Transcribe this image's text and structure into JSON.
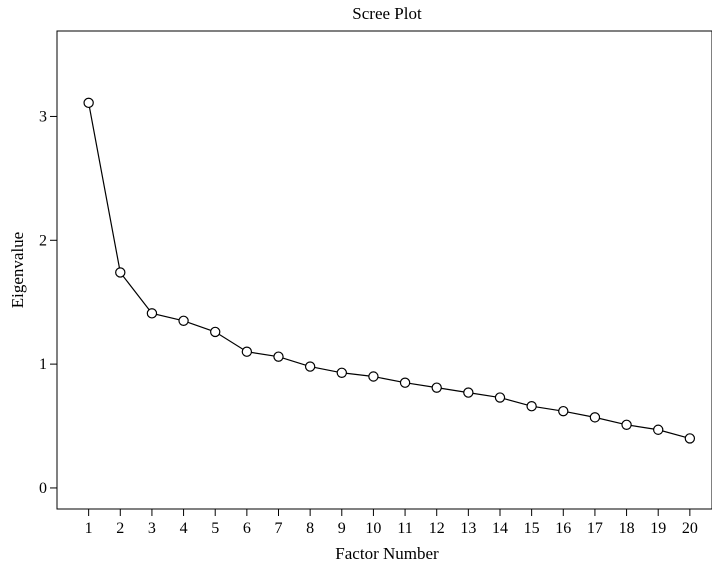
{
  "chart_data": {
    "type": "line",
    "title": "Scree Plot",
    "xlabel": "Factor Number",
    "ylabel": "Eigenvalue",
    "x": [
      1,
      2,
      3,
      4,
      5,
      6,
      7,
      8,
      9,
      10,
      11,
      12,
      13,
      14,
      15,
      16,
      17,
      18,
      19,
      20
    ],
    "x_ticks": [
      "1",
      "2",
      "3",
      "4",
      "5",
      "6",
      "7",
      "8",
      "9",
      "10",
      "11",
      "12",
      "13",
      "14",
      "15",
      "16",
      "17",
      "18",
      "19",
      "20"
    ],
    "y_ticks": [
      "0",
      "1",
      "2",
      "3"
    ],
    "series": [
      {
        "values": [
          3.11,
          1.74,
          1.41,
          1.35,
          1.26,
          1.1,
          1.06,
          0.98,
          0.93,
          0.9,
          0.85,
          0.81,
          0.77,
          0.73,
          0.66,
          0.62,
          0.57,
          0.51,
          0.47,
          0.4
        ]
      }
    ],
    "xlim": [
      0,
      20.7
    ],
    "ylim": [
      -0.17,
      3.69
    ],
    "marker": "open-circle",
    "grid": false,
    "legend": "none",
    "line_color": "#000000"
  }
}
